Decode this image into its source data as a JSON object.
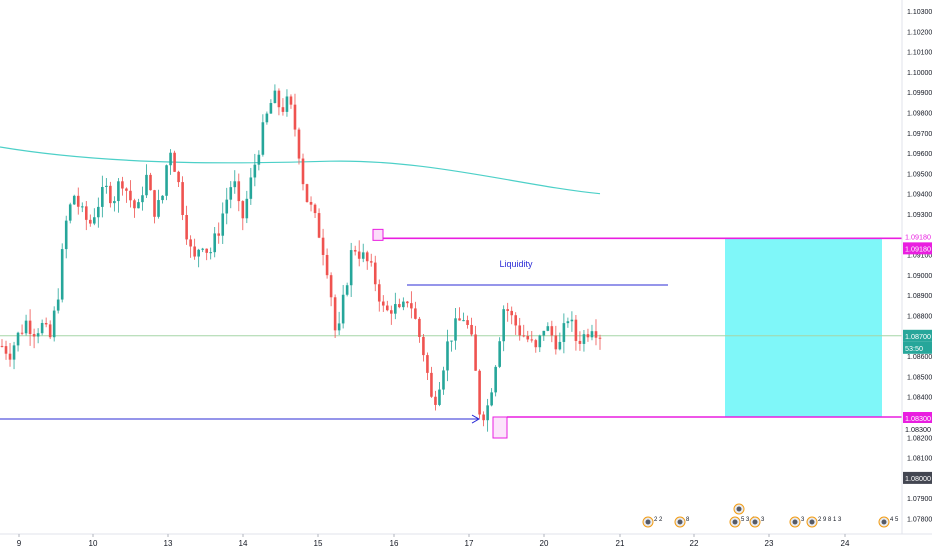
{
  "chart_data": {
    "type": "candlestick",
    "instrument_note": "",
    "x": {
      "tick_labels": [
        "9",
        "10",
        "13",
        "14",
        "15",
        "16",
        "17",
        "20",
        "21",
        "22",
        "23",
        "24"
      ]
    },
    "y": {
      "range": [
        1.0775,
        1.103
      ],
      "tick_labels": [
        "1.07800",
        "1.07900",
        "1.08000",
        "1.08100",
        "1.08200",
        "1.08300",
        "1.08400",
        "1.08500",
        "1.08600",
        "1.08700",
        "1.08800",
        "1.08900",
        "1.09000",
        "1.09100",
        "1.09200",
        "1.09300",
        "1.09400",
        "1.09500",
        "1.09600",
        "1.09700",
        "1.09800",
        "1.09900",
        "1.10000",
        "1.10100",
        "1.10200",
        "1.10300"
      ],
      "tick_values": [
        1.078,
        1.079,
        1.08,
        1.081,
        1.082,
        1.083,
        1.084,
        1.085,
        1.086,
        1.087,
        1.088,
        1.089,
        1.09,
        1.091,
        1.092,
        1.093,
        1.094,
        1.095,
        1.096,
        1.097,
        1.098,
        1.099,
        1.1,
        1.101,
        1.102,
        1.103
      ]
    },
    "price_path": [
      1.0865,
      1.0862,
      1.087,
      1.0877,
      1.0873,
      1.0875,
      1.0868,
      1.089,
      1.0925,
      1.094,
      1.093,
      1.0925,
      1.0935,
      1.0942,
      1.0938,
      1.0948,
      1.0938,
      1.093,
      1.095,
      1.0932,
      1.0935,
      1.0965,
      1.0948,
      1.0925,
      1.0905,
      1.0918,
      1.091,
      1.092,
      1.0935,
      1.0948,
      1.0925,
      1.0942,
      1.096,
      1.0975,
      1.0988,
      1.0982,
      1.0985,
      1.0968,
      1.094,
      1.093,
      1.0918,
      1.09,
      1.0865,
      1.0892,
      1.0915,
      1.091,
      1.0905,
      1.0895,
      1.088,
      1.0885,
      1.088,
      1.089,
      1.0875,
      1.086,
      1.0835,
      1.085,
      1.0868,
      1.0875,
      1.088,
      1.0865,
      1.083,
      1.0836,
      1.086,
      1.0886,
      1.0878,
      1.0872,
      1.0868,
      1.0862,
      1.0875,
      1.087,
      1.0865,
      1.088,
      1.0868,
      1.087,
      1.0876,
      1.0871
    ],
    "current_price": {
      "label": "1.08700",
      "countdown": "53:50",
      "value": 1.087
    },
    "moving_average": {
      "color": "#4dd0c8",
      "start_value": 1.0963,
      "mid_value": 1.0956,
      "end_value": 1.094
    },
    "annotations": {
      "liquidity": {
        "text": "Liquidity",
        "value": 1.0895,
        "color": "#2b2bd6"
      },
      "support_arrow": {
        "value": 1.0829,
        "color": "#2b2bd6"
      },
      "upper_level": {
        "label": "1.09180",
        "value": 1.0918,
        "color": "#e91ee0"
      },
      "lower_level": {
        "label": "1.08300",
        "value": 1.083,
        "color": "#e91ee0"
      },
      "stop_level": {
        "label": "1.08000",
        "value": 1.08
      },
      "upper_tag_text": "1.09180",
      "lower_tag_text": "1.08300",
      "target_zone": {
        "from": 1.083,
        "to": 1.0918,
        "color": "#7ff7f9"
      },
      "stop_zone": {
        "from": 1.08,
        "to": 1.083,
        "color": "#b4b4b4"
      }
    },
    "candle_colors": {
      "up": "#26a69a",
      "down": "#ef5350"
    },
    "grid": false
  },
  "event_markers": [
    {
      "label": "2",
      "label2": "2"
    },
    {
      "label": "8",
      "label2": ""
    },
    {
      "label": "5",
      "label2": "3 4"
    },
    {
      "label": "3",
      "label2": ""
    },
    {
      "label": "3",
      "label2": ""
    },
    {
      "label": "2 9 8 1 3",
      "label2": ""
    },
    {
      "label": "4",
      "label2": "5"
    }
  ]
}
